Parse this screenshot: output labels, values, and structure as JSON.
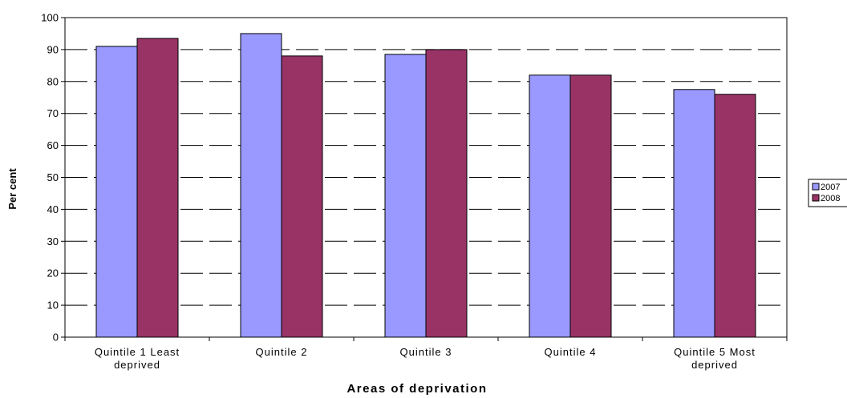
{
  "chart_data": {
    "type": "bar",
    "title": "",
    "xlabel": "Areas of deprivation",
    "ylabel": "Per cent",
    "categories": [
      [
        "Quintile 1 Least",
        "deprived"
      ],
      [
        "Quintile 2"
      ],
      [
        "Quintile 3"
      ],
      [
        "Quintile 4"
      ],
      [
        "Quintile 5 Most",
        "deprived"
      ]
    ],
    "series": [
      {
        "name": "2007",
        "color": "#9999ff",
        "values": [
          91,
          95,
          88.5,
          82,
          77.5
        ]
      },
      {
        "name": "2008",
        "color": "#993366",
        "values": [
          93.5,
          88,
          90,
          82,
          76
        ]
      }
    ],
    "ylim": [
      0,
      100
    ],
    "yticks": [
      0,
      10,
      20,
      30,
      40,
      50,
      60,
      70,
      80,
      90,
      100
    ],
    "grid": "dashed-horizontal",
    "legend": "right"
  }
}
